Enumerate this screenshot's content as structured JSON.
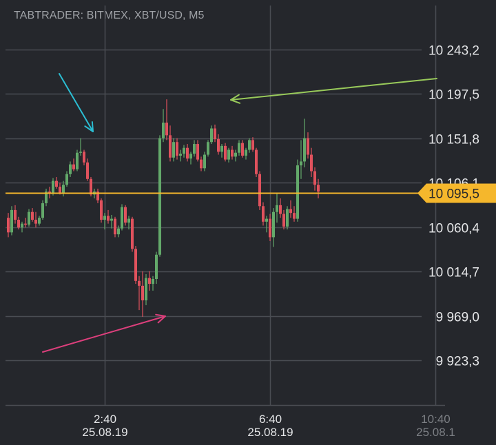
{
  "header": {
    "title": "TABTRADER: BITMEX, XBT/USD, M5"
  },
  "colors": {
    "background": "#25272c",
    "grid": "#4a4d53",
    "bullish": "#63a96a",
    "bearish": "#e0525d",
    "current_price": "#f5b72c",
    "arrow_blue": "#2bbed3",
    "arrow_green": "#98c95a",
    "arrow_pink": "#dd3f7c"
  },
  "chart_data": {
    "type": "candlestick",
    "symbol": "XBT/USD",
    "exchange": "BITMEX",
    "timeframe": "M5",
    "ylim": [
      9900,
      10275
    ],
    "y_ticks": [
      {
        "value": 10243.2,
        "label": "10 243,2"
      },
      {
        "value": 10197.5,
        "label": "10 197,5"
      },
      {
        "value": 10151.8,
        "label": "10 151,8"
      },
      {
        "value": 10106.1,
        "label": "10 106,1"
      },
      {
        "value": 10060.4,
        "label": "10 060,4"
      },
      {
        "value": 10014.7,
        "label": "10 014,7"
      },
      {
        "value": 9969.0,
        "label": "9 969,0"
      },
      {
        "value": 9923.3,
        "label": "9 923,3"
      }
    ],
    "x_ticks": [
      {
        "time": "2:40",
        "date": "25.08.19",
        "candle_index": 28
      },
      {
        "time": "6:40",
        "date": "25.08.19",
        "candle_index": 76
      },
      {
        "time": "10:40",
        "date": "25.08.1",
        "candle_index": 124
      }
    ],
    "current_price": {
      "value": 10095.5,
      "label": "10 095,5"
    },
    "candles": [
      [
        10070,
        10075,
        10050,
        10055
      ],
      [
        10055,
        10082,
        10052,
        10078
      ],
      [
        10078,
        10083,
        10064,
        10068
      ],
      [
        10068,
        10071,
        10058,
        10060
      ],
      [
        10060,
        10066,
        10055,
        10064
      ],
      [
        10064,
        10070,
        10060,
        10063
      ],
      [
        10063,
        10079,
        10061,
        10076
      ],
      [
        10076,
        10080,
        10066,
        10068
      ],
      [
        10068,
        10076,
        10060,
        10064
      ],
      [
        10064,
        10072,
        10062,
        10070
      ],
      [
        10070,
        10088,
        10068,
        10085
      ],
      [
        10085,
        10100,
        10082,
        10097
      ],
      [
        10097,
        10102,
        10090,
        10095
      ],
      [
        10095,
        10111,
        10093,
        10108
      ],
      [
        10108,
        10112,
        10100,
        10102
      ],
      [
        10102,
        10106,
        10094,
        10096
      ],
      [
        10096,
        10108,
        10092,
        10104
      ],
      [
        10104,
        10118,
        10102,
        10115
      ],
      [
        10115,
        10128,
        10112,
        10125
      ],
      [
        10125,
        10131,
        10118,
        10120
      ],
      [
        10120,
        10140,
        10118,
        10137
      ],
      [
        10137,
        10152,
        10134,
        10138
      ],
      [
        10138,
        10140,
        10124,
        10127
      ],
      [
        10127,
        10131,
        10108,
        10110
      ],
      [
        10110,
        10112,
        10092,
        10094
      ],
      [
        10094,
        10100,
        10090,
        10097
      ],
      [
        10097,
        10100,
        10085,
        10088
      ],
      [
        10088,
        10090,
        10065,
        10068
      ],
      [
        10068,
        10075,
        10058,
        10072
      ],
      [
        10072,
        10078,
        10064,
        10067
      ],
      [
        10067,
        10073,
        10059,
        10069
      ],
      [
        10069,
        10071,
        10050,
        10053
      ],
      [
        10053,
        10062,
        10050,
        10059
      ],
      [
        10059,
        10084,
        10057,
        10081
      ],
      [
        10081,
        10083,
        10062,
        10065
      ],
      [
        10065,
        10072,
        10058,
        10069
      ],
      [
        10069,
        10071,
        10035,
        10038
      ],
      [
        10038,
        10041,
        10002,
        10005
      ],
      [
        10005,
        10010,
        9975,
        10000
      ],
      [
        10000,
        10015,
        9968,
        9985
      ],
      [
        9985,
        10012,
        9980,
        10008
      ],
      [
        10008,
        10015,
        9995,
        10002
      ],
      [
        10002,
        10010,
        9995,
        10007
      ],
      [
        10007,
        10035,
        10002,
        10032
      ],
      [
        10032,
        10155,
        10030,
        10152
      ],
      [
        10152,
        10182,
        10148,
        10168
      ],
      [
        10168,
        10192,
        10150,
        10155
      ],
      [
        10155,
        10165,
        10128,
        10132
      ],
      [
        10132,
        10152,
        10128,
        10148
      ],
      [
        10148,
        10152,
        10130,
        10134
      ],
      [
        10134,
        10140,
        10128,
        10136
      ],
      [
        10136,
        10145,
        10132,
        10142
      ],
      [
        10142,
        10146,
        10128,
        10131
      ],
      [
        10131,
        10138,
        10125,
        10136
      ],
      [
        10136,
        10150,
        10133,
        10146
      ],
      [
        10146,
        10150,
        10128,
        10130
      ],
      [
        10130,
        10133,
        10118,
        10121
      ],
      [
        10121,
        10138,
        10118,
        10135
      ],
      [
        10135,
        10150,
        10133,
        10148
      ],
      [
        10148,
        10165,
        10146,
        10162
      ],
      [
        10162,
        10166,
        10148,
        10151
      ],
      [
        10151,
        10156,
        10135,
        10138
      ],
      [
        10138,
        10146,
        10132,
        10144
      ],
      [
        10144,
        10147,
        10128,
        10130
      ],
      [
        10130,
        10142,
        10127,
        10140
      ],
      [
        10140,
        10144,
        10130,
        10133
      ],
      [
        10133,
        10140,
        10128,
        10137
      ],
      [
        10137,
        10150,
        10134,
        10147
      ],
      [
        10147,
        10150,
        10132,
        10134
      ],
      [
        10134,
        10142,
        10130,
        10140
      ],
      [
        10140,
        10152,
        10137,
        10150
      ],
      [
        10150,
        10153,
        10138,
        10140
      ],
      [
        10140,
        10142,
        10112,
        10115
      ],
      [
        10115,
        10118,
        10078,
        10082
      ],
      [
        10082,
        10086,
        10062,
        10066
      ],
      [
        10066,
        10072,
        10055,
        10069
      ],
      [
        10069,
        10074,
        10046,
        10050
      ],
      [
        10050,
        10080,
        10040,
        10076
      ],
      [
        10076,
        10095,
        10065,
        10083
      ],
      [
        10083,
        10090,
        10070,
        10074
      ],
      [
        10074,
        10078,
        10058,
        10061
      ],
      [
        10061,
        10082,
        10058,
        10079
      ],
      [
        10079,
        10088,
        10070,
        10075
      ],
      [
        10075,
        10082,
        10066,
        10069
      ],
      [
        10069,
        10130,
        10066,
        10124
      ],
      [
        10124,
        10150,
        10110,
        10128
      ],
      [
        10128,
        10172,
        10122,
        10152
      ],
      [
        10152,
        10158,
        10131,
        10135
      ],
      [
        10135,
        10142,
        10112,
        10118
      ],
      [
        10118,
        10122,
        10098,
        10104
      ],
      [
        10104,
        10110,
        10090,
        10097
      ]
    ]
  }
}
